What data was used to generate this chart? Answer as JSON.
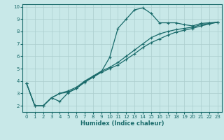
{
  "xlabel": "Humidex (Indice chaleur)",
  "bg_color": "#c8e8e8",
  "grid_color": "#aacece",
  "line_color": "#1a6b6b",
  "spine_color": "#1a6b6b",
  "xlim": [
    -0.5,
    23.5
  ],
  "ylim": [
    1.5,
    10.2
  ],
  "xticks": [
    0,
    1,
    2,
    3,
    4,
    5,
    6,
    7,
    8,
    9,
    10,
    11,
    12,
    13,
    14,
    15,
    16,
    17,
    18,
    19,
    20,
    21,
    22,
    23
  ],
  "yticks": [
    2,
    3,
    4,
    5,
    6,
    7,
    8,
    9,
    10
  ],
  "line1_x": [
    0,
    1,
    2,
    3,
    4,
    5,
    6,
    7,
    8,
    9,
    10,
    11,
    12,
    13,
    14,
    15,
    16,
    17,
    18,
    19,
    20,
    21,
    22,
    23
  ],
  "line1_y": [
    3.8,
    2.0,
    2.0,
    2.65,
    2.35,
    3.05,
    3.4,
    3.95,
    4.35,
    4.75,
    5.9,
    8.25,
    9.0,
    9.75,
    9.9,
    9.45,
    8.7,
    8.7,
    8.7,
    8.55,
    8.45,
    8.65,
    8.7,
    8.75
  ],
  "line2_x": [
    0,
    1,
    2,
    3,
    4,
    5,
    6,
    7,
    8,
    9,
    10,
    11,
    12,
    13,
    14,
    15,
    16,
    17,
    18,
    19,
    20,
    21,
    22,
    23
  ],
  "line2_y": [
    3.8,
    2.0,
    2.0,
    2.65,
    3.0,
    3.2,
    3.5,
    4.0,
    4.4,
    4.8,
    5.1,
    5.5,
    6.0,
    6.5,
    7.0,
    7.5,
    7.8,
    8.0,
    8.15,
    8.25,
    8.35,
    8.55,
    8.65,
    8.75
  ],
  "line3_x": [
    0,
    1,
    2,
    3,
    4,
    5,
    6,
    7,
    8,
    9,
    10,
    11,
    12,
    13,
    14,
    15,
    16,
    17,
    18,
    19,
    20,
    21,
    22,
    23
  ],
  "line3_y": [
    3.8,
    2.0,
    2.0,
    2.65,
    3.0,
    3.1,
    3.4,
    3.9,
    4.3,
    4.7,
    5.0,
    5.3,
    5.75,
    6.2,
    6.7,
    7.1,
    7.4,
    7.7,
    7.95,
    8.1,
    8.25,
    8.45,
    8.6,
    8.75
  ],
  "tick_fontsize": 5,
  "xlabel_fontsize": 6,
  "marker_size": 3,
  "linewidth": 0.9
}
